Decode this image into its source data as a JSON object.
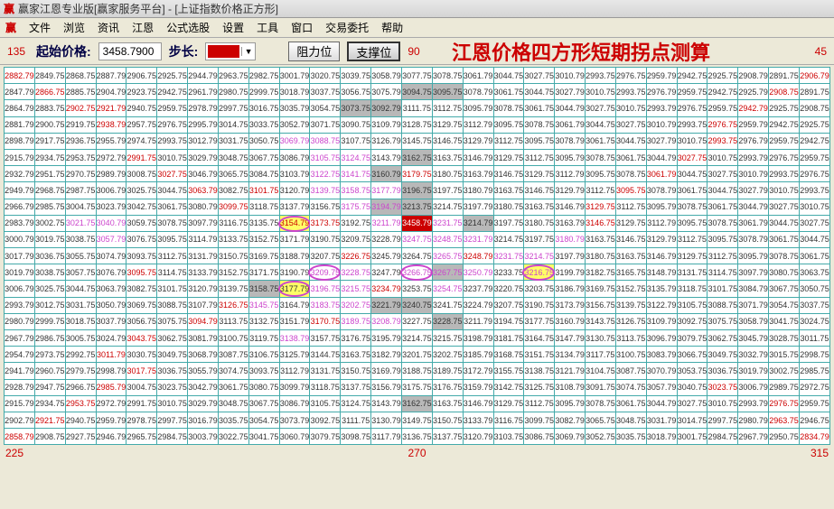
{
  "window": {
    "title": "赢家江恩专业版[赢家服务平台] - [上证指数价格正方形]",
    "icon": "赢"
  },
  "menu": [
    "文件",
    "浏览",
    "资讯",
    "江恩",
    "公式选股",
    "设置",
    "工具",
    "窗口",
    "交易委托",
    "帮助"
  ],
  "toolbar": {
    "c135": "135",
    "start_label": "起始价格:",
    "start_value": "3458.7900",
    "step_label": "步长:",
    "btn1": "阻力位",
    "btn2": "支撑位",
    "c90": "90",
    "title": "江恩价格四方形短期拐点测算",
    "c45": "45"
  },
  "footer": {
    "l": "225",
    "c": "270",
    "r": "315"
  },
  "corners": {
    "tl": "2882.79",
    "tr": "2906.79",
    "bl": "2858.79",
    "br": "2834.79"
  },
  "grid_base": 2882.79,
  "styling": {
    "border": "#4aa",
    "bg": "#fff",
    "red": "#c00",
    "magenta": "#c4c",
    "highlight": "#ff6",
    "redcell": "#c00",
    "graycell": "#b8b8b8"
  },
  "red_cells": [
    [
      0,
      0
    ],
    [
      0,
      26
    ],
    [
      1,
      1
    ],
    [
      1,
      25
    ],
    [
      2,
      2
    ],
    [
      2,
      3
    ],
    [
      2,
      24
    ],
    [
      3,
      3
    ],
    [
      3,
      23
    ],
    [
      4,
      23
    ],
    [
      5,
      4
    ],
    [
      5,
      22
    ],
    [
      6,
      5
    ],
    [
      6,
      13
    ],
    [
      6,
      21
    ],
    [
      7,
      6
    ],
    [
      7,
      8
    ],
    [
      7,
      20
    ],
    [
      8,
      7
    ],
    [
      8,
      19
    ],
    [
      9,
      9
    ],
    [
      9,
      10
    ],
    [
      9,
      19
    ],
    [
      11,
      11
    ],
    [
      11,
      15
    ],
    [
      12,
      4
    ],
    [
      13,
      12
    ],
    [
      14,
      7
    ],
    [
      15,
      6
    ],
    [
      15,
      10
    ],
    [
      16,
      4
    ],
    [
      17,
      3
    ],
    [
      18,
      4
    ],
    [
      19,
      3
    ],
    [
      19,
      23
    ],
    [
      20,
      2
    ],
    [
      20,
      25
    ],
    [
      21,
      1
    ],
    [
      21,
      25
    ],
    [
      22,
      0
    ],
    [
      22,
      26
    ]
  ],
  "mag_cells": [
    [
      4,
      9
    ],
    [
      4,
      10
    ],
    [
      5,
      10
    ],
    [
      5,
      11
    ],
    [
      6,
      10
    ],
    [
      6,
      11
    ],
    [
      7,
      10
    ],
    [
      7,
      11
    ],
    [
      7,
      12
    ],
    [
      8,
      11
    ],
    [
      8,
      12
    ],
    [
      9,
      2
    ],
    [
      9,
      3
    ],
    [
      9,
      12
    ],
    [
      9,
      13
    ],
    [
      9,
      14
    ],
    [
      10,
      3
    ],
    [
      10,
      13
    ],
    [
      10,
      14
    ],
    [
      10,
      15
    ],
    [
      10,
      18
    ],
    [
      11,
      14
    ],
    [
      11,
      16
    ],
    [
      11,
      17
    ],
    [
      12,
      10
    ],
    [
      12,
      11
    ],
    [
      12,
      13
    ],
    [
      12,
      14
    ],
    [
      12,
      15
    ],
    [
      12,
      17
    ],
    [
      13,
      10
    ],
    [
      13,
      11
    ],
    [
      13,
      14
    ],
    [
      14,
      8
    ],
    [
      14,
      10
    ],
    [
      14,
      11
    ],
    [
      15,
      11
    ],
    [
      15,
      12
    ],
    [
      16,
      9
    ]
  ],
  "hl_cells": [
    [
      9,
      9
    ],
    [
      13,
      9
    ],
    [
      12,
      17
    ]
  ],
  "red_bg": [
    [
      9,
      13
    ]
  ],
  "gray_cells": [
    [
      1,
      13
    ],
    [
      1,
      14
    ],
    [
      2,
      11
    ],
    [
      2,
      12
    ],
    [
      5,
      13
    ],
    [
      6,
      12
    ],
    [
      7,
      13
    ],
    [
      8,
      12
    ],
    [
      8,
      13
    ],
    [
      9,
      15
    ],
    [
      12,
      14
    ],
    [
      13,
      8
    ],
    [
      14,
      12
    ],
    [
      14,
      13
    ],
    [
      15,
      14
    ],
    [
      20,
      13
    ]
  ],
  "circles": [
    [
      9,
      9
    ],
    [
      12,
      10
    ],
    [
      12,
      13
    ],
    [
      12,
      17
    ],
    [
      13,
      9
    ]
  ]
}
